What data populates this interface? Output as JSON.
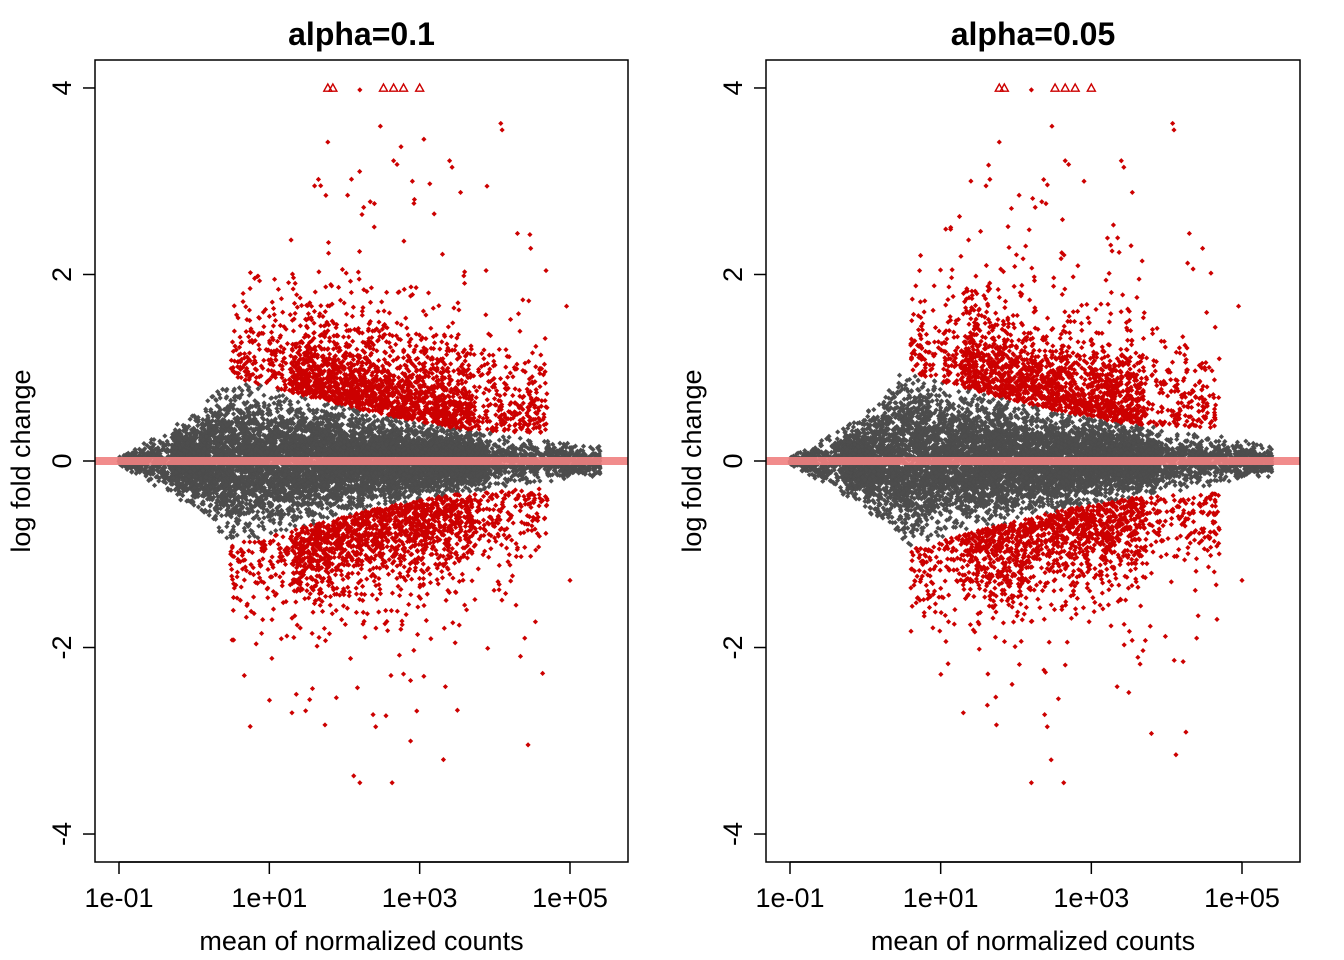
{
  "figure": {
    "background": "#ffffff"
  },
  "chart_data": [
    {
      "type": "scatter",
      "subtype": "MA-plot",
      "title": "alpha=0.1",
      "xlabel": "mean of normalized counts",
      "ylabel": "log fold change",
      "x_scale": "log10",
      "xlim": [
        0.05,
        500000
      ],
      "ylim": [
        -4.3,
        4.3
      ],
      "x_ticks": [
        0.1,
        10,
        1000,
        100000
      ],
      "x_tick_labels": [
        "1e-01",
        "1e+01",
        "1e+03",
        "1e+05"
      ],
      "y_ticks": [
        -4,
        -2,
        0,
        2,
        4
      ],
      "y_tick_labels": [
        "-4",
        "-2",
        "0",
        "2",
        "4"
      ],
      "colors": {
        "not_significant": "#4d4d4d",
        "significant": "#cc0000",
        "zero_line": "#f08080"
      },
      "reference_line": {
        "y": 0
      },
      "significant_threshold_base_mean": 3,
      "series": [
        {
          "role": "outliers",
          "marker": "triangle",
          "points": [
            {
              "x": 60,
              "y": 4
            },
            {
              "x": 70,
              "y": 4
            },
            {
              "x": 330,
              "y": 4
            },
            {
              "x": 450,
              "y": 4
            },
            {
              "x": 610,
              "y": 4
            },
            {
              "x": 1000,
              "y": 4
            }
          ]
        },
        {
          "role": "significant",
          "marker": "diamond",
          "points": [
            {
              "x": 160,
              "y": 3.98
            },
            {
              "x": 12000,
              "y": 3.62
            },
            {
              "x": 12500,
              "y": 3.55
            },
            {
              "x": 300,
              "y": 3.59
            },
            {
              "x": 60,
              "y": 3.42
            },
            {
              "x": 450,
              "y": 3.22
            },
            {
              "x": 500,
              "y": 3.18
            },
            {
              "x": 2500,
              "y": 3.22
            },
            {
              "x": 2700,
              "y": 3.15
            },
            {
              "x": 800,
              "y": 3.0
            },
            {
              "x": 45,
              "y": 3.02
            },
            {
              "x": 40,
              "y": 2.95
            },
            {
              "x": 3500,
              "y": 2.88
            },
            {
              "x": 110,
              "y": 2.85
            },
            {
              "x": 220,
              "y": 2.78
            },
            {
              "x": 250,
              "y": 2.76
            },
            {
              "x": 180,
              "y": 2.72
            },
            {
              "x": 20000,
              "y": 2.44
            },
            {
              "x": 30000,
              "y": 2.28
            },
            {
              "x": 90000,
              "y": 1.66
            },
            {
              "x": 160,
              "y": -3.45
            },
            {
              "x": 430,
              "y": -3.45
            },
            {
              "x": 260,
              "y": -2.85
            },
            {
              "x": 55,
              "y": -2.83
            },
            {
              "x": 240,
              "y": -2.72
            },
            {
              "x": 20,
              "y": -2.7
            },
            {
              "x": 2200,
              "y": -2.42
            },
            {
              "x": 25000,
              "y": -1.9
            },
            {
              "x": 100000,
              "y": -1.28
            }
          ],
          "dense_region": {
            "x_range": [
              3,
              50000
            ],
            "y_abs_range_at_x": [
              [
                3,
                0.9
              ],
              [
                30,
                0.7
              ],
              [
                300,
                0.5
              ],
              [
                3000,
                0.35
              ],
              [
                30000,
                0.3
              ]
            ],
            "approx_count": 4000
          }
        },
        {
          "role": "not_significant",
          "marker": "diamond",
          "dense_region": {
            "x_range": [
              0.1,
              300000
            ],
            "y_abs_envelope_at_x": [
              [
                0.1,
                0.05
              ],
              [
                1,
                0.5
              ],
              [
                3,
                0.9
              ],
              [
                30,
                0.7
              ],
              [
                300,
                0.5
              ],
              [
                3000,
                0.35
              ],
              [
                30000,
                0.25
              ],
              [
                300000,
                0.15
              ]
            ],
            "approx_count": 9000
          }
        }
      ]
    },
    {
      "type": "scatter",
      "subtype": "MA-plot",
      "title": "alpha=0.05",
      "xlabel": "mean of normalized counts",
      "ylabel": "log fold change",
      "x_scale": "log10",
      "xlim": [
        0.05,
        500000
      ],
      "ylim": [
        -4.3,
        4.3
      ],
      "x_ticks": [
        0.1,
        10,
        1000,
        100000
      ],
      "x_tick_labels": [
        "1e-01",
        "1e+01",
        "1e+03",
        "1e+05"
      ],
      "y_ticks": [
        -4,
        -2,
        0,
        2,
        4
      ],
      "y_tick_labels": [
        "-4",
        "-2",
        "0",
        "2",
        "4"
      ],
      "colors": {
        "not_significant": "#4d4d4d",
        "significant": "#cc0000",
        "zero_line": "#f08080"
      },
      "reference_line": {
        "y": 0
      },
      "significant_threshold_base_mean": 4,
      "series": [
        {
          "role": "outliers",
          "marker": "triangle",
          "points": [
            {
              "x": 60,
              "y": 4
            },
            {
              "x": 70,
              "y": 4
            },
            {
              "x": 330,
              "y": 4
            },
            {
              "x": 450,
              "y": 4
            },
            {
              "x": 610,
              "y": 4
            },
            {
              "x": 1000,
              "y": 4
            }
          ]
        },
        {
          "role": "significant",
          "marker": "diamond",
          "points": [
            {
              "x": 160,
              "y": 3.98
            },
            {
              "x": 12000,
              "y": 3.62
            },
            {
              "x": 12500,
              "y": 3.55
            },
            {
              "x": 300,
              "y": 3.59
            },
            {
              "x": 60,
              "y": 3.42
            },
            {
              "x": 450,
              "y": 3.22
            },
            {
              "x": 500,
              "y": 3.18
            },
            {
              "x": 2500,
              "y": 3.22
            },
            {
              "x": 2700,
              "y": 3.15
            },
            {
              "x": 800,
              "y": 3.0
            },
            {
              "x": 45,
              "y": 3.02
            },
            {
              "x": 40,
              "y": 2.95
            },
            {
              "x": 3500,
              "y": 2.88
            },
            {
              "x": 110,
              "y": 2.85
            },
            {
              "x": 220,
              "y": 2.78
            },
            {
              "x": 250,
              "y": 2.76
            },
            {
              "x": 180,
              "y": 2.72
            },
            {
              "x": 20000,
              "y": 2.44
            },
            {
              "x": 30000,
              "y": 2.28
            },
            {
              "x": 90000,
              "y": 1.66
            },
            {
              "x": 160,
              "y": -3.45
            },
            {
              "x": 430,
              "y": -3.45
            },
            {
              "x": 260,
              "y": -2.85
            },
            {
              "x": 55,
              "y": -2.83
            },
            {
              "x": 240,
              "y": -2.72
            },
            {
              "x": 20,
              "y": -2.7
            },
            {
              "x": 2200,
              "y": -2.42
            },
            {
              "x": 25000,
              "y": -1.9
            },
            {
              "x": 100000,
              "y": -1.28
            }
          ],
          "dense_region": {
            "x_range": [
              4,
              50000
            ],
            "y_abs_range_at_x": [
              [
                4,
                0.95
              ],
              [
                30,
                0.75
              ],
              [
                300,
                0.55
              ],
              [
                3000,
                0.4
              ],
              [
                30000,
                0.35
              ]
            ],
            "approx_count": 3600
          }
        },
        {
          "role": "not_significant",
          "marker": "diamond",
          "dense_region": {
            "x_range": [
              0.1,
              300000
            ],
            "y_abs_envelope_at_x": [
              [
                0.1,
                0.05
              ],
              [
                1,
                0.5
              ],
              [
                3,
                0.95
              ],
              [
                30,
                0.75
              ],
              [
                300,
                0.55
              ],
              [
                3000,
                0.4
              ],
              [
                30000,
                0.3
              ],
              [
                300000,
                0.15
              ]
            ],
            "approx_count": 9000
          }
        }
      ]
    }
  ]
}
